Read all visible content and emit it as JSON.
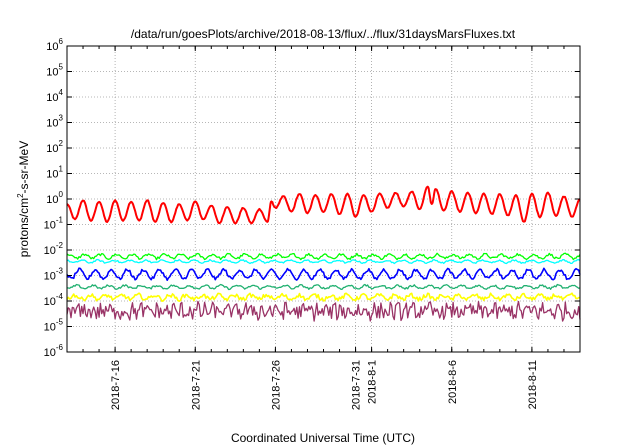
{
  "chart_data": {
    "type": "line",
    "title": "/data/run/goesPlots/archive/2018-08-13/flux/../flux/31daysMarsFluxes.txt",
    "xlabel": "Coordinated Universal Time (UTC)",
    "ylabel_parts": {
      "base": "protons/cm",
      "sup": "2",
      "tail": "-s-sr-MeV"
    },
    "y_scale": "log",
    "ylim_exp": [
      -6,
      6
    ],
    "y_ticks": [
      {
        "base": "10",
        "exp": "-6",
        "value": -6
      },
      {
        "base": "10",
        "exp": "-5",
        "value": -5
      },
      {
        "base": "10",
        "exp": "-4",
        "value": -4
      },
      {
        "base": "10",
        "exp": "-3",
        "value": -3
      },
      {
        "base": "10",
        "exp": "-2",
        "value": -2
      },
      {
        "base": "10",
        "exp": "-1",
        "value": -1
      },
      {
        "base": "10",
        "exp": "0",
        "value": 0
      },
      {
        "base": "10",
        "exp": "1",
        "value": 1
      },
      {
        "base": "10",
        "exp": "2",
        "value": 2
      },
      {
        "base": "10",
        "exp": "3",
        "value": 3
      },
      {
        "base": "10",
        "exp": "4",
        "value": 4
      },
      {
        "base": "10",
        "exp": "5",
        "value": 5
      },
      {
        "base": "10",
        "exp": "6",
        "value": 6
      }
    ],
    "xlim": [
      "2018-07-13",
      "2018-08-14"
    ],
    "x_ticks": [
      "2018-7-16",
      "2018-7-21",
      "2018-7-26",
      "2018-7-31",
      "2018-8-1",
      "2018-8-6",
      "2018-8-11"
    ],
    "grid": true,
    "series": [
      {
        "color": "#ff0000",
        "width": 2.0,
        "points": [
          [
            "2018-07-13T00:00",
            -0.2
          ],
          [
            "2018-07-13T12:00",
            -0.8
          ],
          [
            "2018-07-14T00:00",
            -0.05
          ],
          [
            "2018-07-14T12:00",
            -0.85
          ],
          [
            "2018-07-15T00:00",
            -0.1
          ],
          [
            "2018-07-15T12:00",
            -0.9
          ],
          [
            "2018-07-16T00:00",
            -0.05
          ],
          [
            "2018-07-16T12:00",
            -0.85
          ],
          [
            "2018-07-17T00:00",
            -0.1
          ],
          [
            "2018-07-17T12:00",
            -0.85
          ],
          [
            "2018-07-18T00:00",
            -0.05
          ],
          [
            "2018-07-18T12:00",
            -0.9
          ],
          [
            "2018-07-19T00:00",
            -0.15
          ],
          [
            "2018-07-19T12:00",
            -0.9
          ],
          [
            "2018-07-20T00:00",
            -0.2
          ],
          [
            "2018-07-20T12:00",
            -0.85
          ],
          [
            "2018-07-21T00:00",
            -0.1
          ],
          [
            "2018-07-21T12:00",
            -0.8
          ],
          [
            "2018-07-22T00:00",
            -0.25
          ],
          [
            "2018-07-22T12:00",
            -0.95
          ],
          [
            "2018-07-23T00:00",
            -0.3
          ],
          [
            "2018-07-23T12:00",
            -0.95
          ],
          [
            "2018-07-24T00:00",
            -0.35
          ],
          [
            "2018-07-24T12:00",
            -0.95
          ],
          [
            "2018-07-25T00:00",
            -0.4
          ],
          [
            "2018-07-25T12:00",
            -0.9
          ],
          [
            "2018-07-25T18:00",
            -0.1
          ],
          [
            "2018-07-26T00:00",
            -0.35
          ],
          [
            "2018-07-26T12:00",
            0.1
          ],
          [
            "2018-07-27T00:00",
            -0.5
          ],
          [
            "2018-07-27T12:00",
            0.2
          ],
          [
            "2018-07-28T00:00",
            -0.55
          ],
          [
            "2018-07-28T12:00",
            0.15
          ],
          [
            "2018-07-29T00:00",
            -0.5
          ],
          [
            "2018-07-29T12:00",
            0.2
          ],
          [
            "2018-07-30T00:00",
            -0.6
          ],
          [
            "2018-07-30T12:00",
            0.2
          ],
          [
            "2018-07-31T00:00",
            -0.7
          ],
          [
            "2018-07-31T12:00",
            0.15
          ],
          [
            "2018-08-01T00:00",
            -0.5
          ],
          [
            "2018-08-01T12:00",
            0.2
          ],
          [
            "2018-08-02T00:00",
            -0.35
          ],
          [
            "2018-08-02T12:00",
            0.25
          ],
          [
            "2018-08-03T00:00",
            -0.3
          ],
          [
            "2018-08-03T12:00",
            0.3
          ],
          [
            "2018-08-04T00:00",
            -0.4
          ],
          [
            "2018-08-04T12:00",
            0.5
          ],
          [
            "2018-08-04T18:00",
            -0.2
          ],
          [
            "2018-08-05T00:00",
            0.4
          ],
          [
            "2018-08-05T12:00",
            -0.45
          ],
          [
            "2018-08-06T00:00",
            0.3
          ],
          [
            "2018-08-06T12:00",
            -0.5
          ],
          [
            "2018-08-07T00:00",
            0.25
          ],
          [
            "2018-08-07T12:00",
            -0.55
          ],
          [
            "2018-08-08T00:00",
            0.2
          ],
          [
            "2018-08-08T12:00",
            -0.6
          ],
          [
            "2018-08-09T00:00",
            0.2
          ],
          [
            "2018-08-09T12:00",
            -0.65
          ],
          [
            "2018-08-10T00:00",
            0.15
          ],
          [
            "2018-08-10T12:00",
            -0.9
          ],
          [
            "2018-08-11T00:00",
            0.2
          ],
          [
            "2018-08-11T12:00",
            -0.7
          ],
          [
            "2018-08-12T00:00",
            0.25
          ],
          [
            "2018-08-12T12:00",
            -0.65
          ],
          [
            "2018-08-13T00:00",
            0.1
          ],
          [
            "2018-08-13T12:00",
            -0.7
          ],
          [
            "2018-08-14T00:00",
            0.0
          ]
        ]
      },
      {
        "color": "#00ff00",
        "width": 1.3,
        "base": -2.25,
        "amp": 0.08,
        "noise": 0.05,
        "period_days": 1.0
      },
      {
        "color": "#00ffff",
        "width": 1.3,
        "base": -2.45,
        "amp": 0.05,
        "noise": 0.03,
        "period_days": 1.0
      },
      {
        "color": "#0000ff",
        "width": 1.6,
        "base": -2.95,
        "amp": 0.18,
        "noise": 0.06,
        "period_days": 1.0
      },
      {
        "color": "#20b070",
        "width": 1.3,
        "base": -3.45,
        "amp": 0.06,
        "noise": 0.04,
        "period_days": 1.0
      },
      {
        "color": "#ffff00",
        "width": 1.6,
        "base": -3.85,
        "amp": 0.08,
        "noise": 0.08,
        "period_days": 1.0
      },
      {
        "color": "#993366",
        "width": 1.3,
        "base": -4.4,
        "amp": 0.1,
        "noise": 0.3,
        "period_days": 0.5
      }
    ]
  }
}
